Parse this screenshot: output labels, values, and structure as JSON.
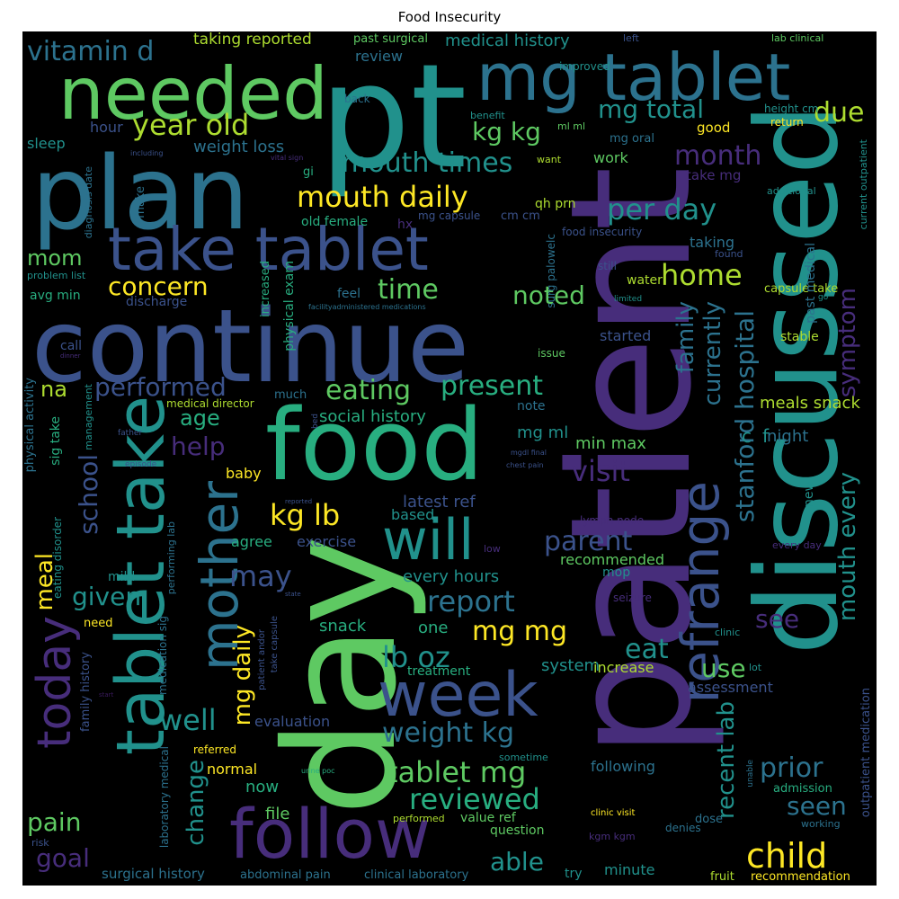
{
  "title": "Food Insecurity",
  "colors": {
    "dark_purple": "#3b1a5e",
    "purple": "#472d7b",
    "indigo": "#3b528b",
    "blue": "#2c728e",
    "teal": "#21918c",
    "green_teal": "#28ae80",
    "green": "#5ec962",
    "light_green": "#addc30",
    "yellow": "#fde725"
  },
  "words": [
    "patient",
    "pt",
    "day",
    "discussed",
    "food",
    "continue",
    "plan",
    "needed",
    "mg tablet",
    "take tablet",
    "tablet take",
    "follow",
    "week",
    "mother",
    "refrange",
    "today",
    "will",
    "child",
    "vitamin d",
    "year old",
    "mouth daily",
    "mouth times",
    "per day",
    "kg kg",
    "mg total",
    "due",
    "month",
    "home",
    "concern",
    "time",
    "noted",
    "mom",
    "eating",
    "present",
    "performed",
    "na",
    "age",
    "help",
    "school",
    "visit",
    "kg lb",
    "parent",
    "may",
    "given",
    "meal",
    "report",
    "mg mg",
    "lb oz",
    "mg daily",
    "well",
    "eat",
    "use",
    "weight kg",
    "tablet mg",
    "reviewed",
    "prior",
    "seen",
    "pain",
    "goal",
    "able",
    "change",
    "recent lab",
    "stanford hospital",
    "mouth every",
    "symptom",
    "family",
    "currently",
    "see",
    "meals snack",
    "night",
    "social history",
    "min max",
    "mg ml",
    "latest ref",
    "based",
    "agree",
    "exercise",
    "every hours",
    "snack",
    "one",
    "system",
    "increase",
    "treatment",
    "assessment",
    "evaluation",
    "normal",
    "now",
    "file",
    "value ref",
    "question",
    "minute",
    "try",
    "fruit",
    "recommendation",
    "surgical history",
    "abdominal pain",
    "clinical laboratory",
    "taking reported",
    "past surgical",
    "medical history",
    "review",
    "hour",
    "sleep",
    "weight loss",
    "avg min",
    "discharge",
    "physical exam",
    "old female",
    "cm cm",
    "qh prn",
    "food insecurity",
    "mg capsule",
    "taking",
    "capsule take",
    "past medical",
    "water",
    "started",
    "stable",
    "issue",
    "hx",
    "feel",
    "call",
    "much",
    "medical director",
    "note",
    "lymph node",
    "every day",
    "recommended",
    "mop",
    "seizure",
    "clinic",
    "lot",
    "admission",
    "working",
    "outpatient medication",
    "dose",
    "denies",
    "sometime",
    "following",
    "kgm kgm",
    "clinic visit",
    "performed",
    "need",
    "mild",
    "baby",
    "new",
    "increased",
    "make",
    "back",
    "benefit",
    "improved",
    "left",
    "lab clinical",
    "height cm",
    "return",
    "good",
    "work",
    "want",
    "mg oral",
    "take mg",
    "additional",
    "current outpatient",
    "still",
    "limited",
    "go",
    "surg palowelc",
    "diagnosis date",
    "problem list",
    "physical activity",
    "eating disorder",
    "sig take",
    "family history",
    "laboratory medical",
    "medication sig",
    "performing lab",
    "take capsule",
    "patient andor",
    "referred",
    "risk",
    "management",
    "father",
    "episode",
    "including",
    "vital sign",
    "gi",
    "facilityadministered medications",
    "dinner",
    "bed",
    "mgdl final",
    "chest pain",
    "reported",
    "state",
    "urine poc",
    "unable",
    "low",
    "start",
    "ml ml",
    "found",
    "c",
    "f"
  ]
}
